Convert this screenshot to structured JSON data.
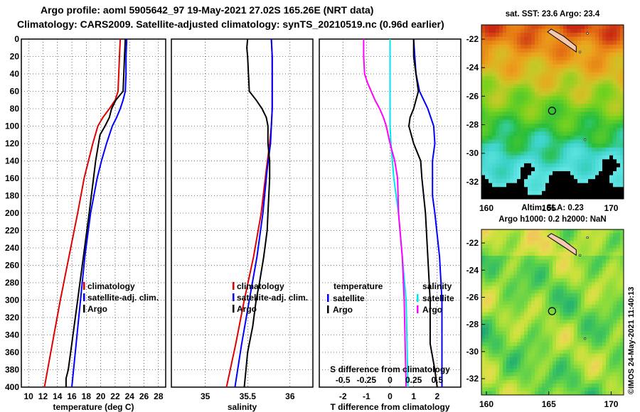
{
  "header": {
    "line1": "Argo profile: aoml 5905642_97 19-May-2021 27.02S 165.26E (NRT data)",
    "line2": "Climatology: CARS2009. Satellite-adjusted climatology: synTS_20210519.nc (0.96d earlier)"
  },
  "credit": "©IMOS 24-May-2021 11:40:13",
  "colors": {
    "climatology": "#e00000",
    "satellite": "#0000ff",
    "argo": "#000000",
    "sat_temp": "#00e5ee",
    "sat_sal": "#ff00ff"
  },
  "chart_data": [
    {
      "type": "line",
      "id": "temperature",
      "xlabel": "temperature (deg C)",
      "ylabel": "depth",
      "xlim": [
        9,
        29
      ],
      "ylim": [
        0,
        400
      ],
      "xticks": [
        "10",
        "12",
        "14",
        "16",
        "18",
        "20",
        "22",
        "24",
        "26",
        "28"
      ],
      "yticks": [
        "0",
        "20",
        "40",
        "60",
        "80",
        "100",
        "120",
        "140",
        "160",
        "180",
        "200",
        "220",
        "240",
        "260",
        "280",
        "300",
        "320",
        "340",
        "360",
        "380",
        "400"
      ],
      "legend": [
        "climatology",
        "satellite-adj. clim.",
        "Argo"
      ],
      "series": [
        {
          "name": "climatology",
          "color": "#e00000",
          "depth": [
            0,
            20,
            40,
            60,
            70,
            80,
            90,
            100,
            120,
            140,
            160,
            200,
            250,
            300,
            350,
            400
          ],
          "values": [
            22.7,
            22.6,
            22.5,
            22.4,
            22.0,
            21.2,
            20.3,
            19.6,
            18.9,
            18.3,
            17.7,
            16.8,
            15.6,
            14.4,
            13.3,
            12.2
          ]
        },
        {
          "name": "satellite-adj. clim.",
          "color": "#0000ff",
          "depth": [
            0,
            20,
            40,
            60,
            70,
            80,
            90,
            100,
            120,
            140,
            160,
            200,
            250,
            300,
            350,
            400
          ],
          "values": [
            23.6,
            23.5,
            23.5,
            23.4,
            23.1,
            22.7,
            22.2,
            21.6,
            20.8,
            20.1,
            19.5,
            18.6,
            17.8,
            17.2,
            16.6,
            16.0
          ]
        },
        {
          "name": "Argo",
          "color": "#000000",
          "depth": [
            0,
            20,
            40,
            60,
            65,
            70,
            80,
            90,
            100,
            110,
            120,
            140,
            160,
            200,
            250,
            300,
            350,
            380,
            390,
            400
          ],
          "values": [
            23.4,
            23.3,
            23.2,
            23.1,
            22.6,
            22.1,
            21.5,
            21.2,
            20.6,
            19.9,
            19.7,
            19.3,
            19.0,
            18.4,
            17.6,
            16.8,
            16.0,
            15.5,
            15.2,
            15.2
          ]
        }
      ]
    },
    {
      "type": "line",
      "id": "salinity",
      "xlabel": "salinity",
      "xlim": [
        34.6,
        36.27
      ],
      "ylim": [
        0,
        400
      ],
      "xticks": [
        "35",
        "35.5",
        "36"
      ],
      "legend": [
        "climatology",
        "satellite-adj. clim.",
        "Argo"
      ],
      "series": [
        {
          "name": "climatology",
          "color": "#e00000",
          "depth": [
            0,
            20,
            40,
            60,
            80,
            100,
            120,
            150,
            200,
            250,
            300,
            350,
            400
          ],
          "values": [
            35.78,
            35.79,
            35.79,
            35.79,
            35.79,
            35.78,
            35.76,
            35.72,
            35.66,
            35.57,
            35.46,
            35.36,
            35.25
          ]
        },
        {
          "name": "satellite-adj. clim.",
          "color": "#0000ff",
          "depth": [
            0,
            20,
            40,
            60,
            80,
            100,
            120,
            150,
            200,
            250,
            300,
            350,
            400
          ],
          "values": [
            35.78,
            35.79,
            35.79,
            35.79,
            35.79,
            35.78,
            35.77,
            35.73,
            35.68,
            35.61,
            35.52,
            35.43,
            35.35
          ]
        },
        {
          "name": "Argo",
          "color": "#000000",
          "depth": [
            0,
            10,
            20,
            40,
            60,
            70,
            80,
            90,
            100,
            110,
            120,
            140,
            160,
            180,
            200,
            220,
            250,
            280,
            300,
            330,
            360,
            380,
            400
          ],
          "values": [
            35.5,
            35.49,
            35.5,
            35.51,
            35.52,
            35.6,
            35.67,
            35.72,
            35.74,
            35.74,
            35.74,
            35.76,
            35.76,
            35.75,
            35.74,
            35.73,
            35.69,
            35.64,
            35.6,
            35.56,
            35.5,
            35.48,
            35.46
          ]
        }
      ]
    },
    {
      "type": "line",
      "id": "difference",
      "xlabel": "T difference from climatology",
      "xlabel_top": "S difference from climatology",
      "xlim": [
        -3,
        3
      ],
      "slim": [
        -0.75,
        0.75
      ],
      "ylim": [
        0,
        400
      ],
      "xticks": [
        "-2",
        "-1",
        "0",
        "1",
        "2"
      ],
      "sticks": [
        "-0.5",
        "-0.25",
        "0",
        "0.25",
        "0.5"
      ],
      "legend_temperature_title": "temperature",
      "legend_salinity_title": "salinity",
      "legend_temperature": [
        "satellite",
        "Argo"
      ],
      "legend_salinity": [
        "satellite",
        "Argo"
      ],
      "series": [
        {
          "name": "T satellite",
          "color": "#0000ff",
          "depth": [
            0,
            20,
            40,
            60,
            80,
            100,
            120,
            140,
            160,
            180,
            200,
            250,
            300,
            350,
            400
          ],
          "values": [
            1.0,
            1.05,
            1.1,
            1.25,
            1.6,
            1.85,
            1.9,
            1.8,
            1.8,
            1.8,
            1.9,
            2.1,
            2.2,
            2.2,
            2.2
          ]
        },
        {
          "name": "T Argo",
          "color": "#000000",
          "depth": [
            0,
            20,
            40,
            60,
            80,
            90,
            100,
            120,
            140,
            160,
            200,
            250,
            300,
            350,
            380,
            400
          ],
          "values": [
            1.0,
            1.0,
            1.1,
            1.2,
            1.0,
            0.85,
            0.8,
            1.0,
            1.3,
            1.35,
            1.5,
            1.6,
            1.7,
            1.7,
            1.9,
            2.0
          ]
        },
        {
          "name": "S satellite",
          "color": "#00e5ee",
          "depth": [
            0,
            40,
            80,
            100,
            120,
            160,
            200,
            250,
            300,
            350,
            400
          ],
          "values": [
            0.0,
            0.0,
            0.0,
            0.0,
            0.01,
            0.04,
            0.09,
            0.13,
            0.17,
            0.18,
            0.19
          ]
        },
        {
          "name": "S Argo",
          "color": "#ff00ff",
          "depth": [
            0,
            20,
            40,
            50,
            60,
            70,
            80,
            90,
            100,
            120,
            140,
            160,
            200,
            250,
            300,
            350,
            400
          ],
          "values": [
            -0.28,
            -0.28,
            -0.27,
            -0.24,
            -0.2,
            -0.16,
            -0.11,
            -0.07,
            -0.04,
            0.0,
            0.05,
            0.08,
            0.09,
            0.13,
            0.15,
            0.16,
            0.17
          ]
        }
      ]
    },
    {
      "type": "heatmap",
      "id": "sst_map",
      "title": "sat. SST: 23.6 Argo: 23.4",
      "xlim": [
        159.6,
        171.0
      ],
      "ylim": [
        -33.2,
        -21.0
      ],
      "xticks": [
        "160",
        "165",
        "170"
      ],
      "yticks": [
        "-22",
        "-24",
        "-26",
        "-28",
        "-30",
        "-32"
      ],
      "argo_position": [
        165.26,
        -27.02
      ]
    },
    {
      "type": "heatmap",
      "id": "sla_map",
      "title": "Altim. SLA: 0.23",
      "subtitle": "Argo h1000: 0.2 h2000: NaN",
      "xlim": [
        159.6,
        171.0
      ],
      "ylim": [
        -33.2,
        -21.0
      ],
      "xticks": [
        "160",
        "165",
        "170"
      ],
      "yticks": [
        "-22",
        "-24",
        "-26",
        "-28",
        "-30",
        "-32"
      ],
      "argo_position": [
        165.26,
        -27.02
      ]
    }
  ]
}
